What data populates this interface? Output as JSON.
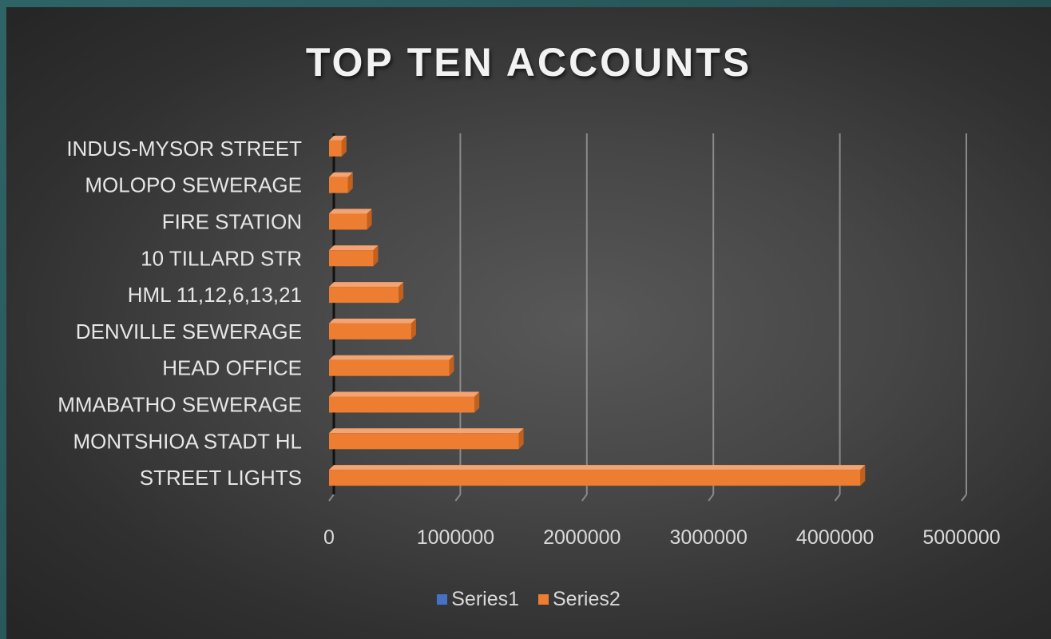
{
  "chart_data": {
    "type": "bar",
    "orientation": "horizontal",
    "title": "TOP TEN ACCOUNTS",
    "categories": [
      "STREET LIGHTS",
      "MONTSHIOA STADT HL",
      "MMABATHO SEWERAGE",
      "HEAD OFFICE",
      "DENVILLE SEWERAGE",
      "HML 11,12,6,13,21",
      "10 TILLARD STR",
      "FIRE STATION",
      "MOLOPO SEWERAGE",
      "INDUS-MYSOR STREET"
    ],
    "series": [
      {
        "name": "Series1",
        "color": "#4472c4",
        "values": [
          0,
          0,
          0,
          0,
          0,
          0,
          0,
          0,
          0,
          0
        ]
      },
      {
        "name": "Series2",
        "color": "#ed7d31",
        "values": [
          4200000,
          1500000,
          1150000,
          950000,
          650000,
          550000,
          350000,
          300000,
          150000,
          100000
        ]
      }
    ],
    "xlim": [
      0,
      5000000
    ],
    "xticks": [
      "0",
      "1000000",
      "2000000",
      "3000000",
      "4000000",
      "5000000"
    ],
    "grid": true,
    "legend_position": "bottom"
  }
}
